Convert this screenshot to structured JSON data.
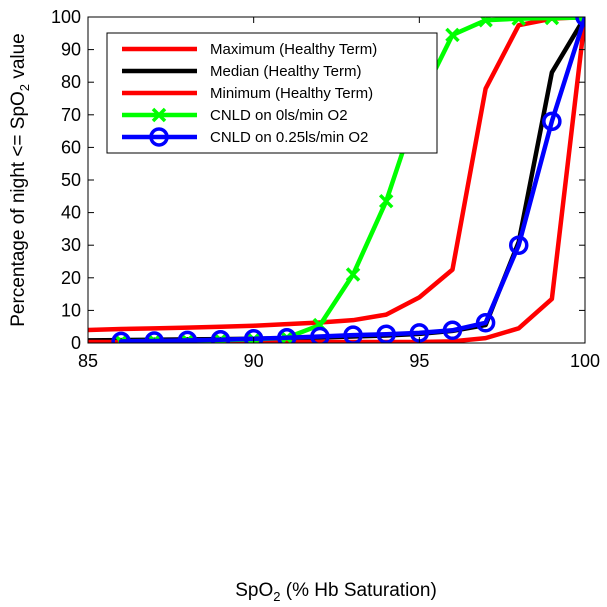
{
  "chart_data": {
    "type": "line",
    "xlabel": "SpO2 (% Hb Saturation)",
    "ylabel": "Percentage of night <= SpO2 value",
    "xlim": [
      85,
      100
    ],
    "ylim": [
      0,
      100
    ],
    "xticks": [
      "85",
      "90",
      "95",
      "100"
    ],
    "yticks": [
      "0",
      "10",
      "20",
      "30",
      "40",
      "50",
      "60",
      "70",
      "80",
      "90",
      "100"
    ],
    "grid": false,
    "legend_position": "top-left",
    "series": [
      {
        "name": "Maximum (Healthy Term)",
        "color": "#ff0000",
        "marker": "none",
        "x": [
          85,
          86,
          87,
          88,
          89,
          90,
          91,
          92,
          93,
          94,
          95,
          96,
          97,
          98,
          99,
          100
        ],
        "y": [
          4,
          4.3,
          4.5,
          4.7,
          5,
          5.3,
          5.8,
          6.3,
          7,
          8.7,
          14,
          22.5,
          78,
          97.5,
          99.5,
          100
        ]
      },
      {
        "name": "Median (Healthy Term)",
        "color": "#000000",
        "marker": "none",
        "x": [
          85,
          86,
          87,
          88,
          89,
          90,
          91,
          92,
          93,
          94,
          95,
          96,
          97,
          98,
          99,
          100
        ],
        "y": [
          0.8,
          0.9,
          1,
          1.1,
          1.2,
          1.3,
          1.5,
          1.7,
          2,
          2.3,
          2.8,
          3.7,
          5.5,
          31,
          83,
          100
        ]
      },
      {
        "name": "Minimum (Healthy Term)",
        "color": "#ff0000",
        "marker": "none",
        "x": [
          85,
          86,
          87,
          88,
          89,
          90,
          91,
          92,
          93,
          94,
          95,
          96,
          97,
          98,
          99,
          100
        ],
        "y": [
          0.3,
          0.3,
          0.3,
          0.3,
          0.3,
          0.3,
          0.3,
          0.3,
          0.3,
          0.3,
          0.3,
          0.5,
          1.5,
          4.5,
          13.5,
          100
        ]
      },
      {
        "name": "CNLD on 0ls/min O2",
        "color": "#00ff00",
        "marker": "x",
        "x": [
          86,
          87,
          88,
          89,
          90,
          91,
          92,
          93,
          94,
          95,
          96,
          97,
          98,
          99,
          100
        ],
        "y": [
          0.5,
          0.6,
          0.7,
          0.9,
          1.1,
          1.6,
          5.5,
          21,
          43.5,
          74,
          94.5,
          99,
          99.5,
          99.7,
          99.8
        ]
      },
      {
        "name": "CNLD on 0.25ls/min O2",
        "color": "#0000ff",
        "marker": "o",
        "x": [
          86,
          87,
          88,
          89,
          90,
          91,
          92,
          93,
          94,
          95,
          96,
          97,
          98,
          99,
          100
        ],
        "y": [
          0.5,
          0.6,
          0.8,
          1,
          1.3,
          1.6,
          2,
          2.4,
          2.7,
          3.1,
          3.9,
          6.2,
          30,
          68,
          100
        ]
      }
    ]
  }
}
